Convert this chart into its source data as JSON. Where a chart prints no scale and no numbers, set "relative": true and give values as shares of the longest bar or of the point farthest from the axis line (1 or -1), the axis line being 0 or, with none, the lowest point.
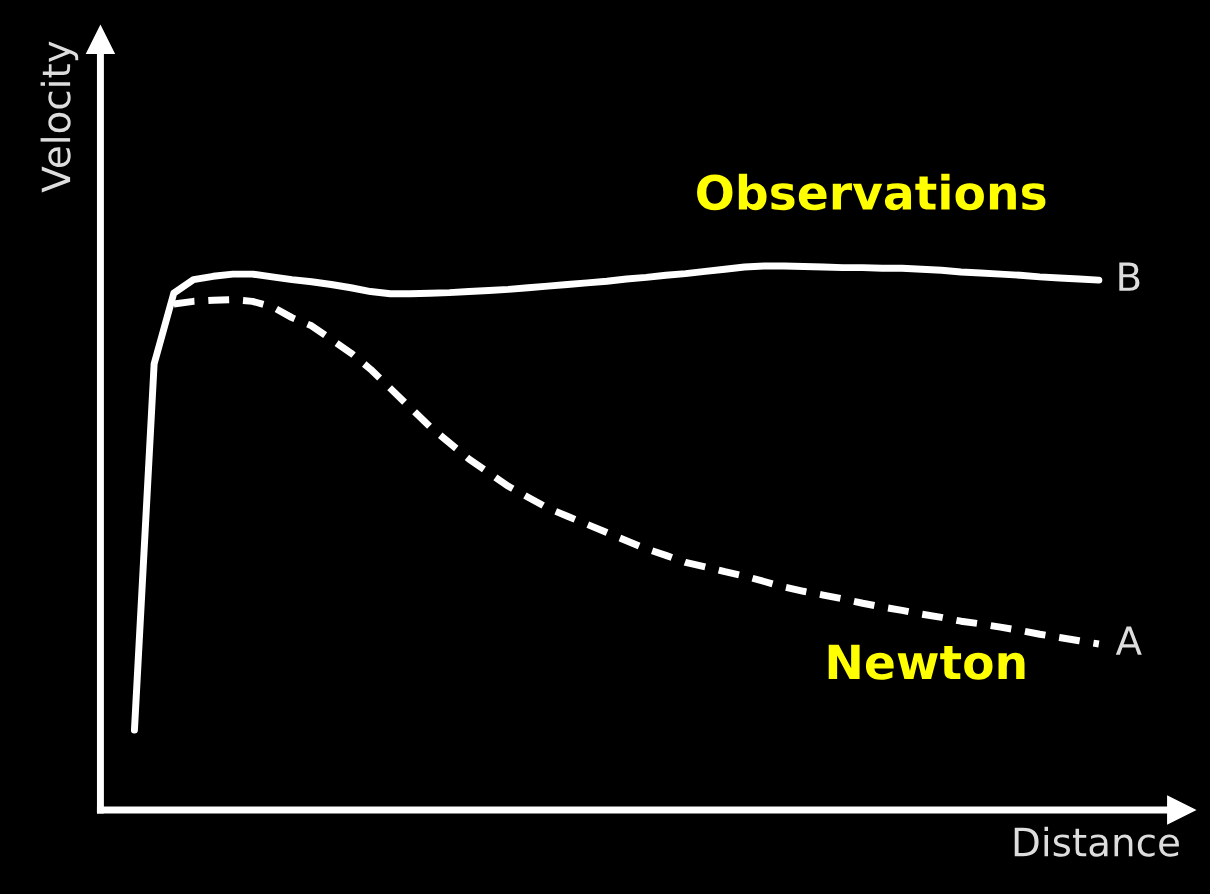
{
  "chart_data": {
    "type": "line",
    "relative": true,
    "xlabel": "Distance",
    "ylabel": "Velocity",
    "tick_labels": false,
    "categories": [
      null,
      null,
      null,
      null,
      null,
      null,
      null,
      null,
      null,
      null,
      null,
      null,
      null,
      null,
      null,
      null,
      null,
      null,
      null,
      null,
      null,
      null,
      null,
      null,
      null,
      null,
      null,
      null,
      null,
      null,
      null,
      null,
      null,
      null,
      null,
      null,
      null,
      null,
      null,
      null,
      null,
      null,
      null,
      null,
      null,
      null,
      null,
      null,
      null,
      null
    ],
    "series": [
      {
        "color": "#ffffff",
        "line_style": "solid",
        "values": [
          0.147,
          0.82,
          0.95,
          0.975,
          0.981,
          0.985,
          0.985,
          0.98,
          0.975,
          0.971,
          0.966,
          0.96,
          0.953,
          0.949,
          0.949,
          0.95,
          0.951,
          0.953,
          0.955,
          0.957,
          0.96,
          0.963,
          0.966,
          0.969,
          0.972,
          0.976,
          0.979,
          0.983,
          0.986,
          0.99,
          0.994,
          0.998,
          1.0,
          1.0,
          0.999,
          0.998,
          0.997,
          0.997,
          0.996,
          0.996,
          0.994,
          0.992,
          0.989,
          0.987,
          0.985,
          0.983,
          0.98,
          0.978,
          0.976,
          0.974
        ]
      },
      {
        "color": "#ffffff",
        "line_style": "dashed",
        "values": [
          null,
          null,
          0.93,
          0.935,
          0.937,
          0.938,
          0.935,
          0.925,
          0.905,
          0.89,
          0.865,
          0.84,
          0.81,
          0.775,
          0.74,
          0.705,
          0.675,
          0.645,
          0.62,
          0.595,
          0.575,
          0.555,
          0.54,
          0.525,
          0.51,
          0.495,
          0.48,
          0.468,
          0.455,
          0.447,
          0.438,
          0.43,
          0.42,
          0.41,
          0.402,
          0.395,
          0.388,
          0.38,
          0.373,
          0.367,
          0.36,
          0.354,
          0.347,
          0.342,
          0.336,
          0.33,
          0.323,
          0.317,
          0.311,
          0.305
        ]
      }
    ],
    "annotations": [
      "B",
      "A",
      "Observations",
      "Newton"
    ]
  }
}
